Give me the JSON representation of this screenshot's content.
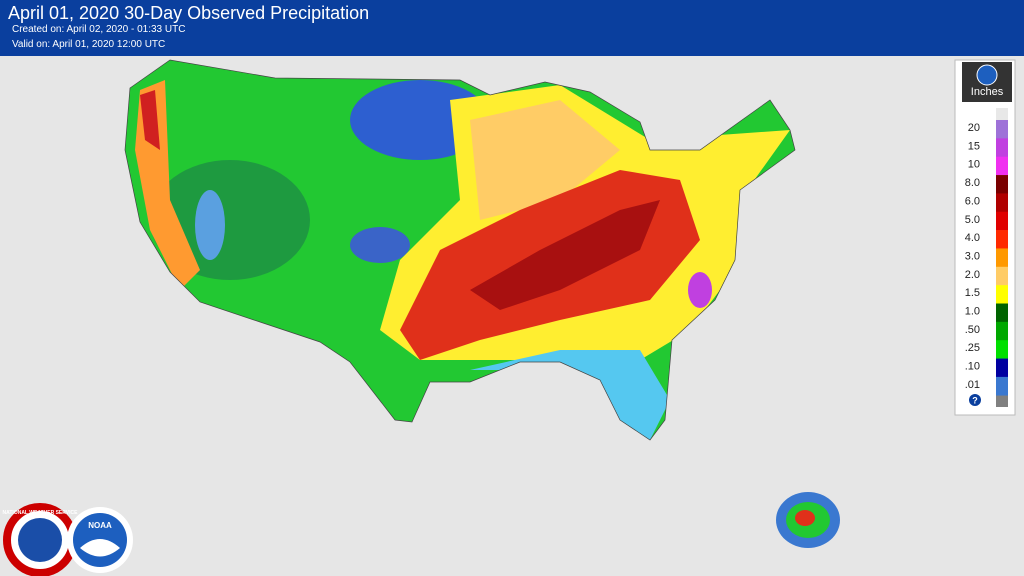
{
  "header": {
    "title": "April 01, 2020 30-Day Observed Precipitation",
    "created": "Created on: April 02, 2020 - 01:33 UTC",
    "valid": "Valid on: April 01, 2020 12:00 UTC"
  },
  "legend": {
    "unit": "Inches",
    "help": "?",
    "items": [
      {
        "label": "20",
        "color": "#9e72d8"
      },
      {
        "label": "15",
        "color": "#c040e0"
      },
      {
        "label": "10",
        "color": "#f030f0"
      },
      {
        "label": "8.0",
        "color": "#7a0000"
      },
      {
        "label": "6.0",
        "color": "#b00000"
      },
      {
        "label": "5.0",
        "color": "#e00000"
      },
      {
        "label": "4.0",
        "color": "#ff2a00"
      },
      {
        "label": "3.0",
        "color": "#ff9900"
      },
      {
        "label": "2.0",
        "color": "#ffcc66"
      },
      {
        "label": "1.5",
        "color": "#ffff00"
      },
      {
        "label": "1.0",
        "color": "#006400"
      },
      {
        "label": ".50",
        "color": "#00a800"
      },
      {
        "label": ".25",
        "color": "#00e000"
      },
      {
        "label": ".10",
        "color": "#0000a0"
      },
      {
        "label": ".01",
        "color": "#3a78d0"
      }
    ]
  },
  "logos": {
    "nws": "NATIONAL WEATHER SERVICE",
    "noaa": "NOAA"
  }
}
